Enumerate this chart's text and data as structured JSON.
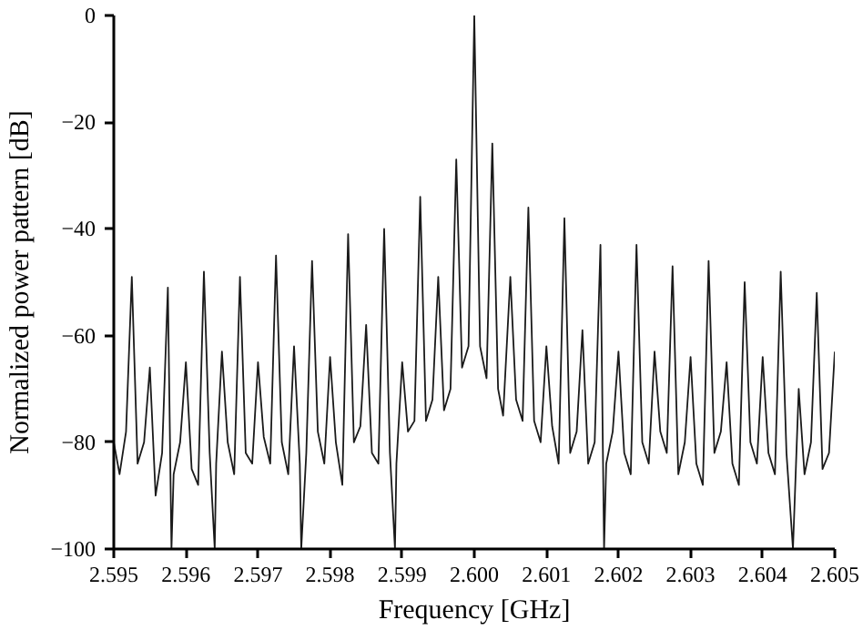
{
  "chart_data": {
    "type": "line",
    "xlabel": "Frequency [GHz]",
    "ylabel": "Normalized power pattern [dB]",
    "xlim": [
      2.595,
      2.605
    ],
    "ylim": [
      -100,
      0
    ],
    "xticks": [
      2.595,
      2.596,
      2.597,
      2.598,
      2.599,
      {
        "value": 2.6,
        "label": "2.600"
      },
      2.601,
      2.602,
      2.603,
      2.604,
      2.605
    ],
    "yticks": [
      -100,
      -80,
      -60,
      -40,
      -20,
      0
    ],
    "grid": false,
    "series": [
      {
        "color": "#1a1a1a",
        "x": [
          2.595,
          2.59508,
          2.59517,
          2.59525,
          2.59533,
          2.59542,
          2.5955,
          2.59558,
          2.59567,
          2.59575,
          2.5958,
          2.59583,
          2.59592,
          2.596,
          2.59608,
          2.59617,
          2.59625,
          2.59633,
          2.5964,
          2.59642,
          2.5965,
          2.59658,
          2.59667,
          2.59675,
          2.59683,
          2.59692,
          2.597,
          2.59708,
          2.59717,
          2.59725,
          2.59733,
          2.59742,
          2.5975,
          2.59758,
          2.5976,
          2.59767,
          2.59775,
          2.59783,
          2.59792,
          2.598,
          2.59808,
          2.59817,
          2.59825,
          2.59833,
          2.59842,
          2.5985,
          2.59858,
          2.59867,
          2.59875,
          2.59883,
          2.5989,
          2.59892,
          2.599,
          2.59908,
          2.59917,
          2.59925,
          2.59933,
          2.59942,
          2.5995,
          2.59958,
          2.59967,
          2.59975,
          2.59983,
          2.59992,
          2.6,
          2.60008,
          2.60017,
          2.60025,
          2.60033,
          2.6004,
          2.6005,
          2.60058,
          2.60067,
          2.60075,
          2.60083,
          2.60092,
          2.601,
          2.60108,
          2.60117,
          2.60125,
          2.60133,
          2.60142,
          2.6015,
          2.60158,
          2.60167,
          2.60175,
          2.6018,
          2.60183,
          2.60192,
          2.602,
          2.60208,
          2.60217,
          2.60225,
          2.60233,
          2.60242,
          2.6025,
          2.60258,
          2.60267,
          2.60275,
          2.60283,
          2.60292,
          2.603,
          2.60308,
          2.60317,
          2.60325,
          2.60333,
          2.60342,
          2.6035,
          2.60358,
          2.60367,
          2.60375,
          2.60383,
          2.60392,
          2.604,
          2.60408,
          2.60417,
          2.60425,
          2.60433,
          2.60442,
          2.6045,
          2.60458,
          2.60467,
          2.60475,
          2.60483,
          2.60492,
          2.605
        ],
        "values": [
          -80,
          -86,
          -78,
          -49,
          -84,
          -80,
          -66,
          -90,
          -82,
          -51,
          -100,
          -86,
          -80,
          -65,
          -85,
          -88,
          -48,
          -82,
          -100,
          -84,
          -63,
          -80,
          -86,
          -49,
          -82,
          -84,
          -65,
          -79,
          -84,
          -45,
          -80,
          -86,
          -62,
          -84,
          -100,
          -82,
          -46,
          -78,
          -84,
          -64,
          -80,
          -88,
          -41,
          -80,
          -77,
          -58,
          -82,
          -84,
          -40,
          -82,
          -100,
          -84,
          -65,
          -78,
          -76,
          -34,
          -76,
          -72,
          -49,
          -74,
          -70,
          -27,
          -66,
          -62,
          0,
          -62,
          -68,
          -24,
          -70,
          -75,
          -49,
          -72,
          -76,
          -36,
          -76,
          -80,
          -62,
          -77,
          -84,
          -38,
          -82,
          -78,
          -59,
          -84,
          -80,
          -43,
          -100,
          -84,
          -78,
          -63,
          -82,
          -86,
          -43,
          -80,
          -84,
          -63,
          -78,
          -82,
          -47,
          -86,
          -80,
          -64,
          -84,
          -88,
          -46,
          -82,
          -78,
          -65,
          -84,
          -88,
          -50,
          -80,
          -84,
          -64,
          -82,
          -86,
          -48,
          -82,
          -100,
          -70,
          -86,
          -80,
          -52,
          -85,
          -82,
          -63
        ]
      }
    ]
  }
}
